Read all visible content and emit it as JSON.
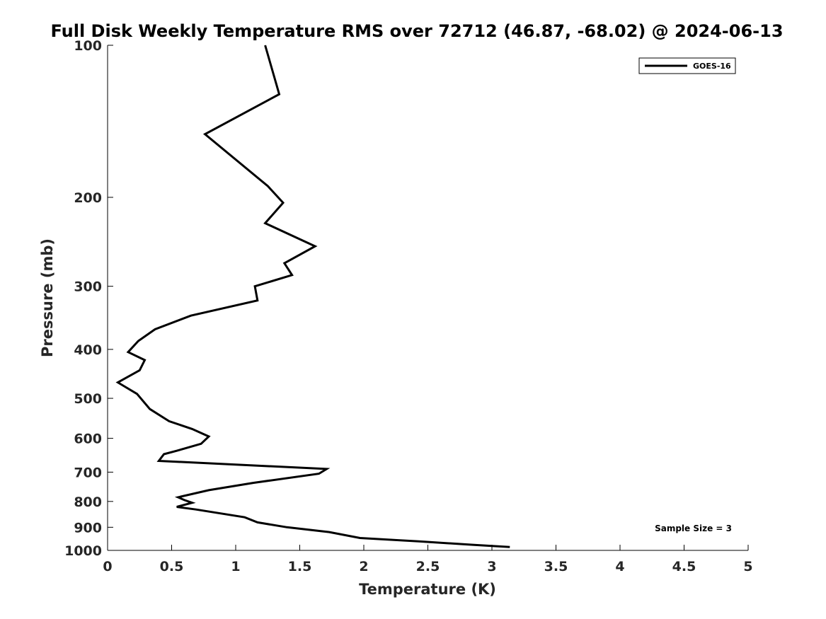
{
  "chart_data": {
    "type": "line",
    "title": "Full Disk Weekly Temperature RMS over 72712 (46.87, -68.02) @ 2024-06-13",
    "xlabel": "Temperature (K)",
    "ylabel": "Pressure (mb)",
    "xlim": [
      0,
      5
    ],
    "ylim": [
      100,
      1000
    ],
    "yscale": "log",
    "y_reversed": true,
    "xticks": [
      "0",
      "0.5",
      "1",
      "1.5",
      "2",
      "2.5",
      "3",
      "3.5",
      "4",
      "4.5",
      "5"
    ],
    "yticks": [
      "100",
      "200",
      "300",
      "400",
      "500",
      "600",
      "700",
      "800",
      "900",
      "1000"
    ],
    "grid": false,
    "legend_position": "top-right",
    "series": [
      {
        "name": "GOES-16",
        "color": "#000000",
        "points": [
          [
            1.23,
            100
          ],
          [
            1.34,
            125
          ],
          [
            0.76,
            150
          ],
          [
            1.25,
            190
          ],
          [
            1.37,
            205
          ],
          [
            1.23,
            225
          ],
          [
            1.62,
            250
          ],
          [
            1.38,
            270
          ],
          [
            1.44,
            285
          ],
          [
            1.15,
            300
          ],
          [
            1.17,
            320
          ],
          [
            0.65,
            343
          ],
          [
            0.37,
            365
          ],
          [
            0.24,
            385
          ],
          [
            0.16,
            405
          ],
          [
            0.29,
            420
          ],
          [
            0.25,
            440
          ],
          [
            0.08,
            465
          ],
          [
            0.23,
            490
          ],
          [
            0.33,
            525
          ],
          [
            0.48,
            555
          ],
          [
            0.66,
            575
          ],
          [
            0.79,
            595
          ],
          [
            0.73,
            615
          ],
          [
            0.54,
            635
          ],
          [
            0.44,
            645
          ],
          [
            0.4,
            665
          ],
          [
            1.71,
            690
          ],
          [
            1.65,
            705
          ],
          [
            1.14,
            735
          ],
          [
            0.79,
            760
          ],
          [
            0.55,
            785
          ],
          [
            0.6,
            795
          ],
          [
            0.66,
            805
          ],
          [
            0.54,
            820
          ],
          [
            0.69,
            830
          ],
          [
            1.07,
            860
          ],
          [
            1.17,
            880
          ],
          [
            1.4,
            900
          ],
          [
            1.73,
            920
          ],
          [
            1.97,
            945
          ],
          [
            2.43,
            960
          ],
          [
            2.85,
            975
          ],
          [
            3.14,
            985
          ]
        ]
      }
    ],
    "annotation": "Sample Size = 3"
  }
}
